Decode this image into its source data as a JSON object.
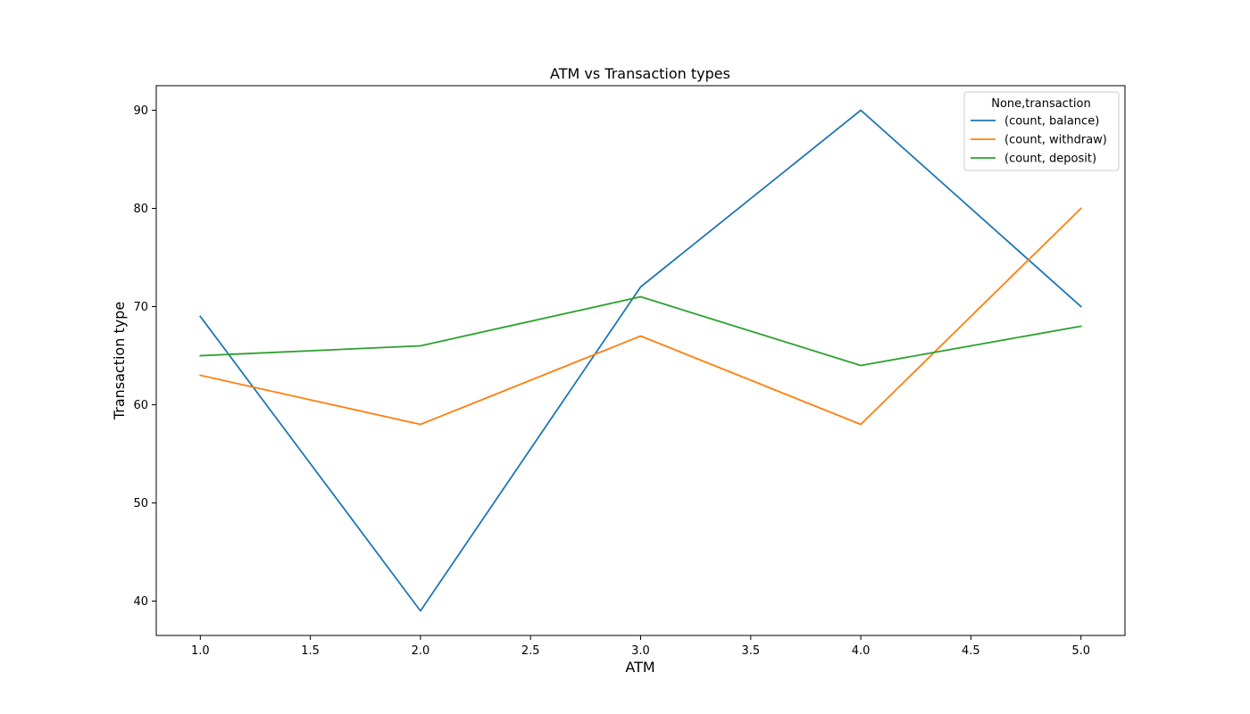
{
  "chart_data": {
    "type": "line",
    "title": "ATM vs Transaction types",
    "xlabel": "ATM",
    "ylabel": "Transaction type",
    "x": [
      1,
      2,
      3,
      4,
      5
    ],
    "xlim": [
      0.8,
      5.2
    ],
    "ylim": [
      36.5,
      92.5
    ],
    "xticks": [
      1.0,
      1.5,
      2.0,
      2.5,
      3.0,
      3.5,
      4.0,
      4.5,
      5.0
    ],
    "xtick_labels": [
      "1.0",
      "1.5",
      "2.0",
      "2.5",
      "3.0",
      "3.5",
      "4.0",
      "4.5",
      "5.0"
    ],
    "yticks": [
      40,
      50,
      60,
      70,
      80,
      90
    ],
    "ytick_labels": [
      "40",
      "50",
      "60",
      "70",
      "80",
      "90"
    ],
    "grid": false,
    "legend": {
      "title": "None,transaction",
      "placement": "top-right"
    },
    "series": [
      {
        "name": "(count, balance)",
        "color": "#1f77b4",
        "values": [
          69,
          39,
          72,
          90,
          70
        ]
      },
      {
        "name": "(count, withdraw)",
        "color": "#ff7f0e",
        "values": [
          63,
          58,
          67,
          58,
          80
        ]
      },
      {
        "name": "(count, deposit)",
        "color": "#2ca02c",
        "values": [
          65,
          66,
          71,
          64,
          68
        ]
      }
    ]
  }
}
